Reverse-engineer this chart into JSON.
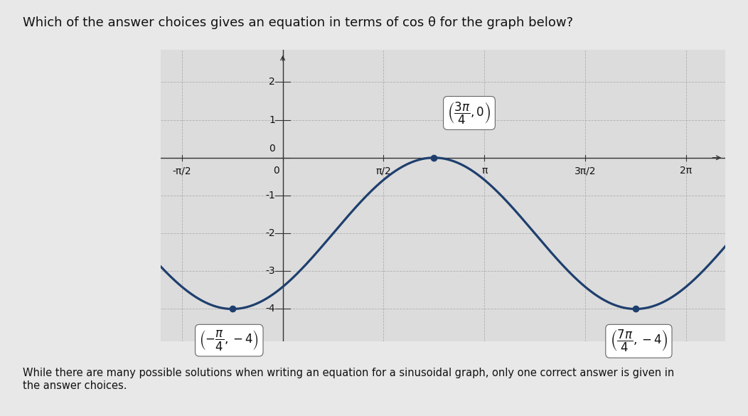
{
  "title": "Which of the answer choices gives an equation in terms of cos θ for the graph below?",
  "subtitle": "While there are many possible solutions when writing an equation for a sinusoidal graph, only one correct answer is given in\nthe answer choices.",
  "xlim": [
    -1.9,
    6.9
  ],
  "ylim": [
    -4.85,
    2.85
  ],
  "xticks": [
    -1.5707963267948966,
    0,
    1.5707963267948966,
    3.141592653589793,
    4.71238898038469,
    6.283185307179586
  ],
  "xticklabels": [
    "-π/2",
    "0",
    "π/2",
    "π",
    "3π/2",
    "2π"
  ],
  "yticks": [
    -4,
    -3,
    -2,
    -1,
    0,
    1,
    2
  ],
  "amplitude": 2,
  "midline": -2,
  "phase_shift": 2.356194490192345,
  "period": 6.283185307179586,
  "curve_color": "#1e3f6e",
  "point1_x": -0.7853981633974483,
  "point1_y": -4,
  "point2_x": 2.356194490192345,
  "point2_y": 0,
  "point3_x": 5.497787143782138,
  "point3_y": -4,
  "background_color": "#e8e8e8",
  "plot_bg_color": "#dcdcdc",
  "grid_color": "#aaaaaa",
  "axis_color": "#333333",
  "font_color": "#111111",
  "title_fontsize": 13,
  "subtitle_fontsize": 10.5,
  "tick_fontsize": 10,
  "annot_fontsize": 12
}
